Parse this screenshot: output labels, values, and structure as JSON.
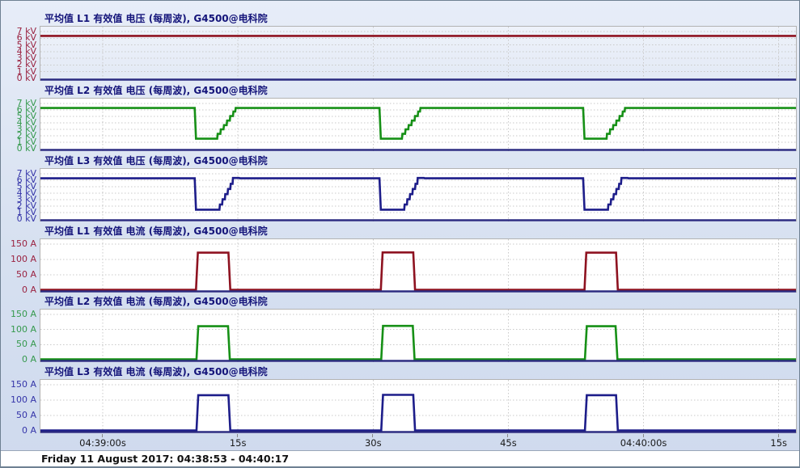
{
  "status_bar": {
    "text": "Friday 11 August 2017: 04:38:53 - 04:40:17"
  },
  "x_axis": {
    "start_time": "04:38:53",
    "end_time": "04:40:17",
    "range_seconds": [
      0,
      84
    ],
    "ticks": [
      {
        "seconds": 7,
        "label": "04:39:00s"
      },
      {
        "seconds": 22,
        "label": "15s"
      },
      {
        "seconds": 37,
        "label": "30s"
      },
      {
        "seconds": 52,
        "label": "45s"
      },
      {
        "seconds": 67,
        "label": "04:40:00s"
      },
      {
        "seconds": 82,
        "label": "15s"
      }
    ]
  },
  "chart_data": [
    {
      "id": "l1-voltage",
      "type": "line",
      "title": "平均值 L1 有效值 电压 (每周波), G4500@电科院",
      "unit": "kV",
      "ylim": [
        0,
        7
      ],
      "grid_step": 1,
      "y_tick_labels": [
        "7 kV",
        "6 kV",
        "5 kV",
        "4 kV",
        "3 kV",
        "2 kV",
        "1 kV",
        "0 kV"
      ],
      "line_color": "#8e1220",
      "label_color": "#9a2240",
      "selected": true,
      "points": [
        [
          0,
          6.35
        ],
        [
          84,
          6.35
        ]
      ]
    },
    {
      "id": "l2-voltage",
      "type": "line",
      "title": "平均值 L2 有效值 电压 (每周波), G4500@电科院",
      "unit": "kV",
      "ylim": [
        0,
        7
      ],
      "grid_step": 1,
      "y_tick_labels": [
        "7 kV",
        "6 kV",
        "5 kV",
        "4 kV",
        "3 kV",
        "2 kV",
        "1 kV",
        "0 kV"
      ],
      "line_color": "#169016",
      "label_color": "#35994d",
      "selected": false,
      "points": [
        [
          0,
          6.3
        ],
        [
          17.2,
          6.3
        ],
        [
          17.35,
          1.55
        ],
        [
          19.7,
          1.55
        ],
        [
          19.75,
          2.3
        ],
        [
          20.05,
          2.3
        ],
        [
          20.1,
          3.0
        ],
        [
          20.4,
          3.0
        ],
        [
          20.45,
          3.65
        ],
        [
          20.75,
          3.65
        ],
        [
          20.8,
          4.35
        ],
        [
          21.1,
          4.35
        ],
        [
          21.15,
          5.05
        ],
        [
          21.45,
          5.05
        ],
        [
          21.5,
          5.75
        ],
        [
          21.7,
          5.75
        ],
        [
          21.75,
          6.3
        ],
        [
          37.7,
          6.3
        ],
        [
          37.85,
          1.55
        ],
        [
          40.2,
          1.55
        ],
        [
          40.25,
          2.3
        ],
        [
          40.55,
          2.3
        ],
        [
          40.6,
          3.0
        ],
        [
          40.9,
          3.0
        ],
        [
          40.95,
          3.65
        ],
        [
          41.25,
          3.65
        ],
        [
          41.3,
          4.35
        ],
        [
          41.6,
          4.35
        ],
        [
          41.65,
          5.05
        ],
        [
          41.95,
          5.05
        ],
        [
          42.0,
          5.75
        ],
        [
          42.2,
          5.75
        ],
        [
          42.25,
          6.3
        ],
        [
          60.3,
          6.3
        ],
        [
          60.45,
          1.55
        ],
        [
          62.9,
          1.55
        ],
        [
          62.95,
          2.3
        ],
        [
          63.25,
          2.3
        ],
        [
          63.3,
          3.0
        ],
        [
          63.6,
          3.0
        ],
        [
          63.65,
          3.65
        ],
        [
          63.95,
          3.65
        ],
        [
          64.0,
          4.35
        ],
        [
          64.3,
          4.35
        ],
        [
          64.35,
          5.05
        ],
        [
          64.65,
          5.05
        ],
        [
          64.7,
          5.75
        ],
        [
          64.9,
          5.75
        ],
        [
          64.95,
          6.3
        ],
        [
          84,
          6.3
        ]
      ]
    },
    {
      "id": "l3-voltage",
      "type": "line",
      "title": "平均值 L3 有效值 电压 (每周波), G4500@电科院",
      "unit": "kV",
      "ylim": [
        0,
        7
      ],
      "grid_step": 1,
      "y_tick_labels": [
        "7 kV",
        "6 kV",
        "5 kV",
        "4 kV",
        "3 kV",
        "2 kV",
        "1 kV",
        "0 kV"
      ],
      "line_color": "#1d1d8a",
      "label_color": "#3434a8",
      "selected": false,
      "points": [
        [
          0,
          6.3
        ],
        [
          17.2,
          6.3
        ],
        [
          17.35,
          1.45
        ],
        [
          19.95,
          1.45
        ],
        [
          20.0,
          2.25
        ],
        [
          20.25,
          2.25
        ],
        [
          20.3,
          3.05
        ],
        [
          20.55,
          3.05
        ],
        [
          20.6,
          3.85
        ],
        [
          20.85,
          3.85
        ],
        [
          20.9,
          4.65
        ],
        [
          21.15,
          4.65
        ],
        [
          21.2,
          5.45
        ],
        [
          21.4,
          5.45
        ],
        [
          21.45,
          6.35
        ],
        [
          22.15,
          6.35
        ],
        [
          22.2,
          6.3
        ],
        [
          37.7,
          6.3
        ],
        [
          37.85,
          1.45
        ],
        [
          40.45,
          1.45
        ],
        [
          40.5,
          2.25
        ],
        [
          40.75,
          2.25
        ],
        [
          40.8,
          3.05
        ],
        [
          41.05,
          3.05
        ],
        [
          41.1,
          3.85
        ],
        [
          41.35,
          3.85
        ],
        [
          41.4,
          4.65
        ],
        [
          41.65,
          4.65
        ],
        [
          41.7,
          5.45
        ],
        [
          41.9,
          5.45
        ],
        [
          41.95,
          6.35
        ],
        [
          42.65,
          6.35
        ],
        [
          42.7,
          6.3
        ],
        [
          60.3,
          6.3
        ],
        [
          60.45,
          1.45
        ],
        [
          63.05,
          1.45
        ],
        [
          63.1,
          2.25
        ],
        [
          63.35,
          2.25
        ],
        [
          63.4,
          3.05
        ],
        [
          63.65,
          3.05
        ],
        [
          63.7,
          3.85
        ],
        [
          63.95,
          3.85
        ],
        [
          64.0,
          4.65
        ],
        [
          64.25,
          4.65
        ],
        [
          64.3,
          5.45
        ],
        [
          64.5,
          5.45
        ],
        [
          64.55,
          6.35
        ],
        [
          65.25,
          6.35
        ],
        [
          65.3,
          6.3
        ],
        [
          84,
          6.3
        ]
      ]
    },
    {
      "id": "l1-current",
      "type": "line",
      "title": "平均值 L1 有效值 电流 (每周波), G4500@电科院",
      "unit": "A",
      "ylim": [
        0,
        150
      ],
      "grid_step": 50,
      "y_tick_labels": [
        "150 A",
        "100 A",
        "50 A",
        "0 A"
      ],
      "line_color": "#8e1220",
      "label_color": "#9a2240",
      "selected": false,
      "points": [
        [
          0,
          1
        ],
        [
          17.35,
          1
        ],
        [
          17.55,
          122
        ],
        [
          20.95,
          122
        ],
        [
          21.15,
          1
        ],
        [
          37.85,
          1
        ],
        [
          38.05,
          123
        ],
        [
          41.45,
          123
        ],
        [
          41.65,
          1
        ],
        [
          60.45,
          1
        ],
        [
          60.65,
          122
        ],
        [
          63.95,
          122
        ],
        [
          64.15,
          1
        ],
        [
          84,
          1
        ]
      ]
    },
    {
      "id": "l2-current",
      "type": "line",
      "title": "平均值 L2 有效值 电流 (每周波), G4500@电科院",
      "unit": "A",
      "ylim": [
        0,
        150
      ],
      "grid_step": 50,
      "y_tick_labels": [
        "150 A",
        "100 A",
        "50 A",
        "0 A"
      ],
      "line_color": "#169016",
      "label_color": "#35994d",
      "selected": false,
      "points": [
        [
          0,
          1
        ],
        [
          17.4,
          1
        ],
        [
          17.6,
          111
        ],
        [
          20.9,
          111
        ],
        [
          21.1,
          1
        ],
        [
          37.9,
          1
        ],
        [
          38.1,
          112
        ],
        [
          41.4,
          112
        ],
        [
          41.6,
          1
        ],
        [
          60.5,
          1
        ],
        [
          60.7,
          111
        ],
        [
          63.9,
          111
        ],
        [
          64.1,
          1
        ],
        [
          84,
          1
        ]
      ]
    },
    {
      "id": "l3-current",
      "type": "line",
      "title": "平均值 L3 有效值 电流 (每周波), G4500@电科院",
      "unit": "A",
      "ylim": [
        0,
        150
      ],
      "grid_step": 50,
      "y_tick_labels": [
        "150 A",
        "100 A",
        "50 A",
        "0 A"
      ],
      "line_color": "#1d1d8a",
      "label_color": "#3434a8",
      "selected": false,
      "points": [
        [
          0,
          1
        ],
        [
          17.4,
          1
        ],
        [
          17.6,
          116
        ],
        [
          20.95,
          116
        ],
        [
          21.15,
          1
        ],
        [
          37.9,
          1
        ],
        [
          38.1,
          117
        ],
        [
          41.45,
          117
        ],
        [
          41.65,
          1
        ],
        [
          60.5,
          1
        ],
        [
          60.7,
          116
        ],
        [
          63.95,
          116
        ],
        [
          64.15,
          1
        ],
        [
          84,
          1
        ]
      ]
    }
  ]
}
